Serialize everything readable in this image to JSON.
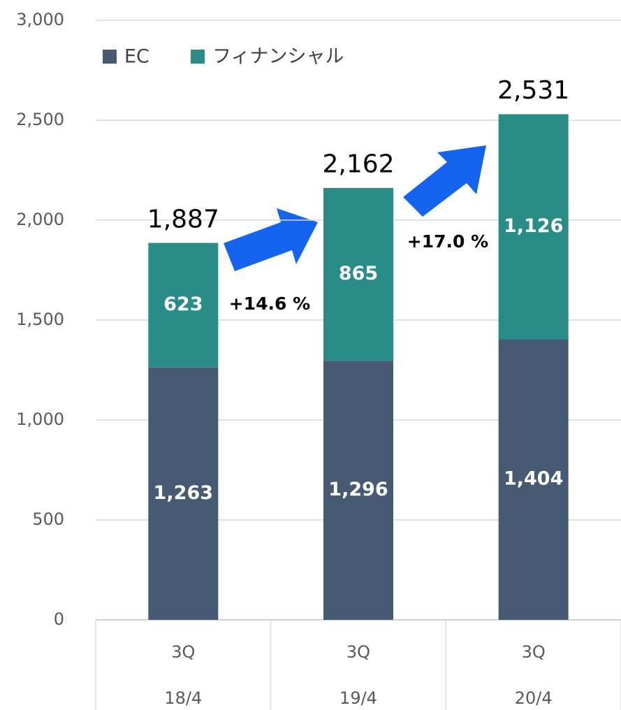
{
  "chart_data": {
    "type": "stacked_bar",
    "categories": [
      "3Q",
      "3Q",
      "3Q"
    ],
    "category_groups": [
      "18/4",
      "19/4",
      "20/4"
    ],
    "series": [
      {
        "name": "EC",
        "color": "#465a74",
        "values": [
          1263,
          1296,
          1404
        ],
        "value_labels": [
          "1,263",
          "1,296",
          "1,404"
        ]
      },
      {
        "name": "フィナンシャル",
        "color": "#2a8c87",
        "values": [
          623,
          865,
          1126
        ],
        "value_labels": [
          "623",
          "865",
          "1,126"
        ]
      }
    ],
    "totals": {
      "values": [
        1887,
        2162,
        2531
      ],
      "value_labels": [
        "1,887",
        "2,162",
        "2,531"
      ]
    },
    "annotations": [
      "+14.6 %",
      "+17.0 %"
    ],
    "ylim": [
      0,
      3000
    ],
    "yticks": [
      0,
      {
        "value": 500,
        "label": "500"
      },
      {
        "value": 1000,
        "label": "1,000"
      },
      {
        "value": 1500,
        "label": "1,500"
      },
      {
        "value": 2000,
        "label": "2,000"
      },
      {
        "value": 2500,
        "label": "2,500"
      },
      {
        "value": 3000,
        "label": "3,000"
      }
    ],
    "grid": true,
    "legend": "top-left"
  }
}
